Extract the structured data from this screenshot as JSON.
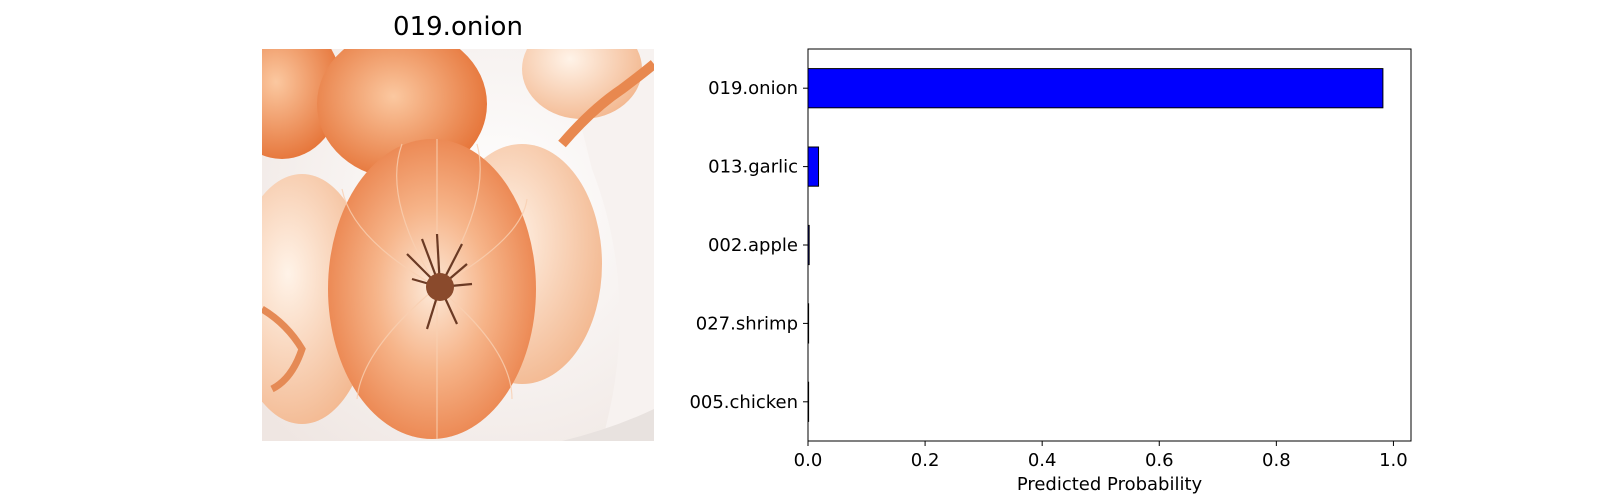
{
  "image_panel": {
    "title": "019.onion",
    "photo_icon": "onion-photo"
  },
  "chart_data": {
    "type": "bar",
    "orientation": "horizontal",
    "categories": [
      "019.onion",
      "013.garlic",
      "002.apple",
      "027.shrimp",
      "005.chicken"
    ],
    "values": [
      0.982,
      0.018,
      0.002,
      0.0005,
      0.0003
    ],
    "title": "",
    "xlabel": "Predicted Probability",
    "ylabel": "",
    "xlim": [
      0.0,
      1.03
    ],
    "xticks": [
      "0.0",
      "0.2",
      "0.4",
      "0.6",
      "0.8",
      "1.0"
    ],
    "grid": false,
    "colors": {
      "bar": "#0000ff",
      "edge": "#000000"
    }
  }
}
